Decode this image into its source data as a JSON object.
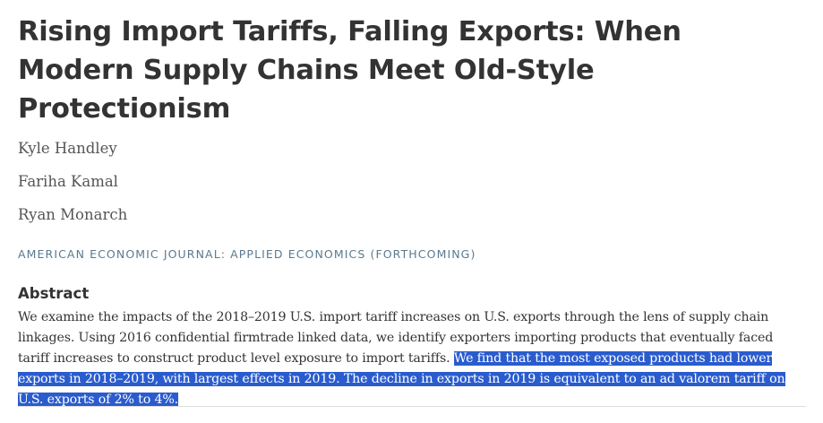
{
  "article": {
    "title": "Rising Import Tariffs, Falling Exports: When Modern Supply Chains Meet Old-Style Protectionism",
    "authors": [
      "Kyle Handley",
      "Fariha Kamal",
      "Ryan Monarch"
    ],
    "journal": "AMERICAN ECONOMIC JOURNAL: APPLIED ECONOMICS (FORTHCOMING)"
  },
  "abstract": {
    "heading": "Abstract",
    "text_plain": "We examine the impacts of the 2018–2019 U.S. import tariff increases on U.S. exports through the lens of supply chain linkages. Using 2016 confidential firmtrade linked data, we identify exporters importing products that eventually faced tariff increases to construct product level exposure to import tariffs. ",
    "text_selected": "We find that the most exposed products had lower exports in 2018–2019, with largest effects in 2019. The decline in exports in 2019 is equivalent to an ad valorem tariff on U.S. exports of 2% to 4%."
  },
  "colors": {
    "selection": "#2a5cce",
    "journal": "#5b7a8e",
    "text": "#333333"
  }
}
